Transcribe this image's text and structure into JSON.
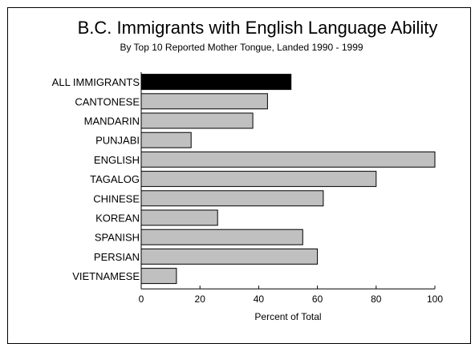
{
  "chart_data": {
    "type": "bar",
    "orientation": "horizontal",
    "title": "B.C. Immigrants with English Language Ability",
    "subtitle": "By Top 10 Reported Mother Tongue, Landed 1990 - 1999",
    "xlabel": "Percent of Total",
    "ylabel": "",
    "xlim": [
      0,
      100
    ],
    "xticks": [
      "0",
      "20",
      "40",
      "60",
      "80",
      "100"
    ],
    "grid": false,
    "categories": [
      "ALL IMMIGRANTS",
      "CANTONESE",
      "MANDARIN",
      "PUNJABI",
      "ENGLISH",
      "TAGALOG",
      "CHINESE",
      "KOREAN",
      "SPANISH",
      "PERSIAN",
      "VIETNAMESE"
    ],
    "values": [
      51,
      43,
      38,
      17,
      100,
      80,
      62,
      26,
      55,
      60,
      12
    ],
    "colors": {
      "highlight": "#000000",
      "bar": "#c0c0c0",
      "edge": "#000000"
    }
  }
}
